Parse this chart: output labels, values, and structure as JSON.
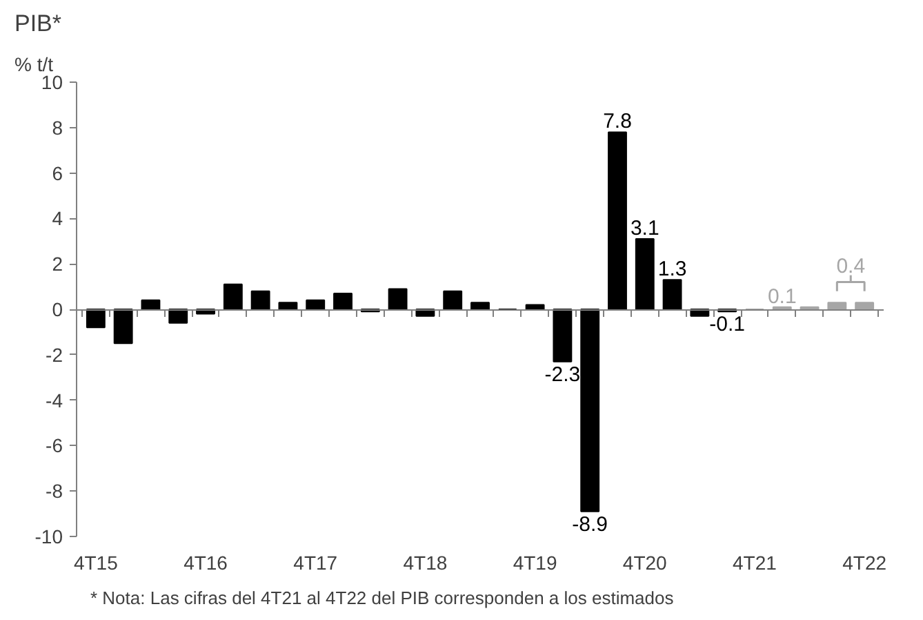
{
  "chart_data": {
    "type": "bar",
    "title": "PIB*",
    "subtitle": "% t/t",
    "categories": [
      "4T15",
      null,
      null,
      null,
      "4T16",
      null,
      null,
      null,
      "4T17",
      null,
      null,
      null,
      "4T18",
      null,
      null,
      null,
      "4T19",
      null,
      null,
      null,
      "4T20",
      null,
      null,
      null,
      "4T21",
      null,
      null,
      null,
      "4T22"
    ],
    "values": [
      -0.8,
      -1.5,
      0.4,
      -0.6,
      -0.2,
      1.1,
      0.8,
      0.3,
      0.4,
      0.7,
      -0.1,
      0.9,
      -0.3,
      0.8,
      0.3,
      0.0,
      0.2,
      -2.3,
      -8.9,
      7.8,
      3.1,
      1.3,
      -0.3,
      -0.1,
      0.0,
      0.1,
      0.1,
      0.3,
      0.3
    ],
    "colors": [
      "#000000",
      "#000000",
      "#000000",
      "#000000",
      "#000000",
      "#000000",
      "#000000",
      "#000000",
      "#000000",
      "#000000",
      "#000000",
      "#000000",
      "#000000",
      "#000000",
      "#000000",
      "#000000",
      "#000000",
      "#000000",
      "#000000",
      "#000000",
      "#000000",
      "#000000",
      "#000000",
      "#000000",
      "#a6a6a6",
      "#a6a6a6",
      "#a6a6a6",
      "#a6a6a6",
      "#a6a6a6"
    ],
    "value_labels": [
      null,
      null,
      null,
      null,
      null,
      null,
      null,
      null,
      null,
      null,
      null,
      null,
      null,
      null,
      null,
      null,
      null,
      "-2.3",
      "-8.9",
      "7.8",
      "3.1",
      "1.3",
      null,
      "-0.1",
      null,
      "0.1",
      null,
      null,
      null
    ],
    "annotations": [
      "0.4",
      "* Nota: Las cifras del 4T21 al 4T22 del PIB corresponden a los estimados"
    ],
    "ylim": [
      -10,
      10
    ],
    "yticks": [
      -10,
      -8,
      -6,
      -4,
      -2,
      0,
      2,
      4,
      6,
      8,
      10
    ]
  }
}
